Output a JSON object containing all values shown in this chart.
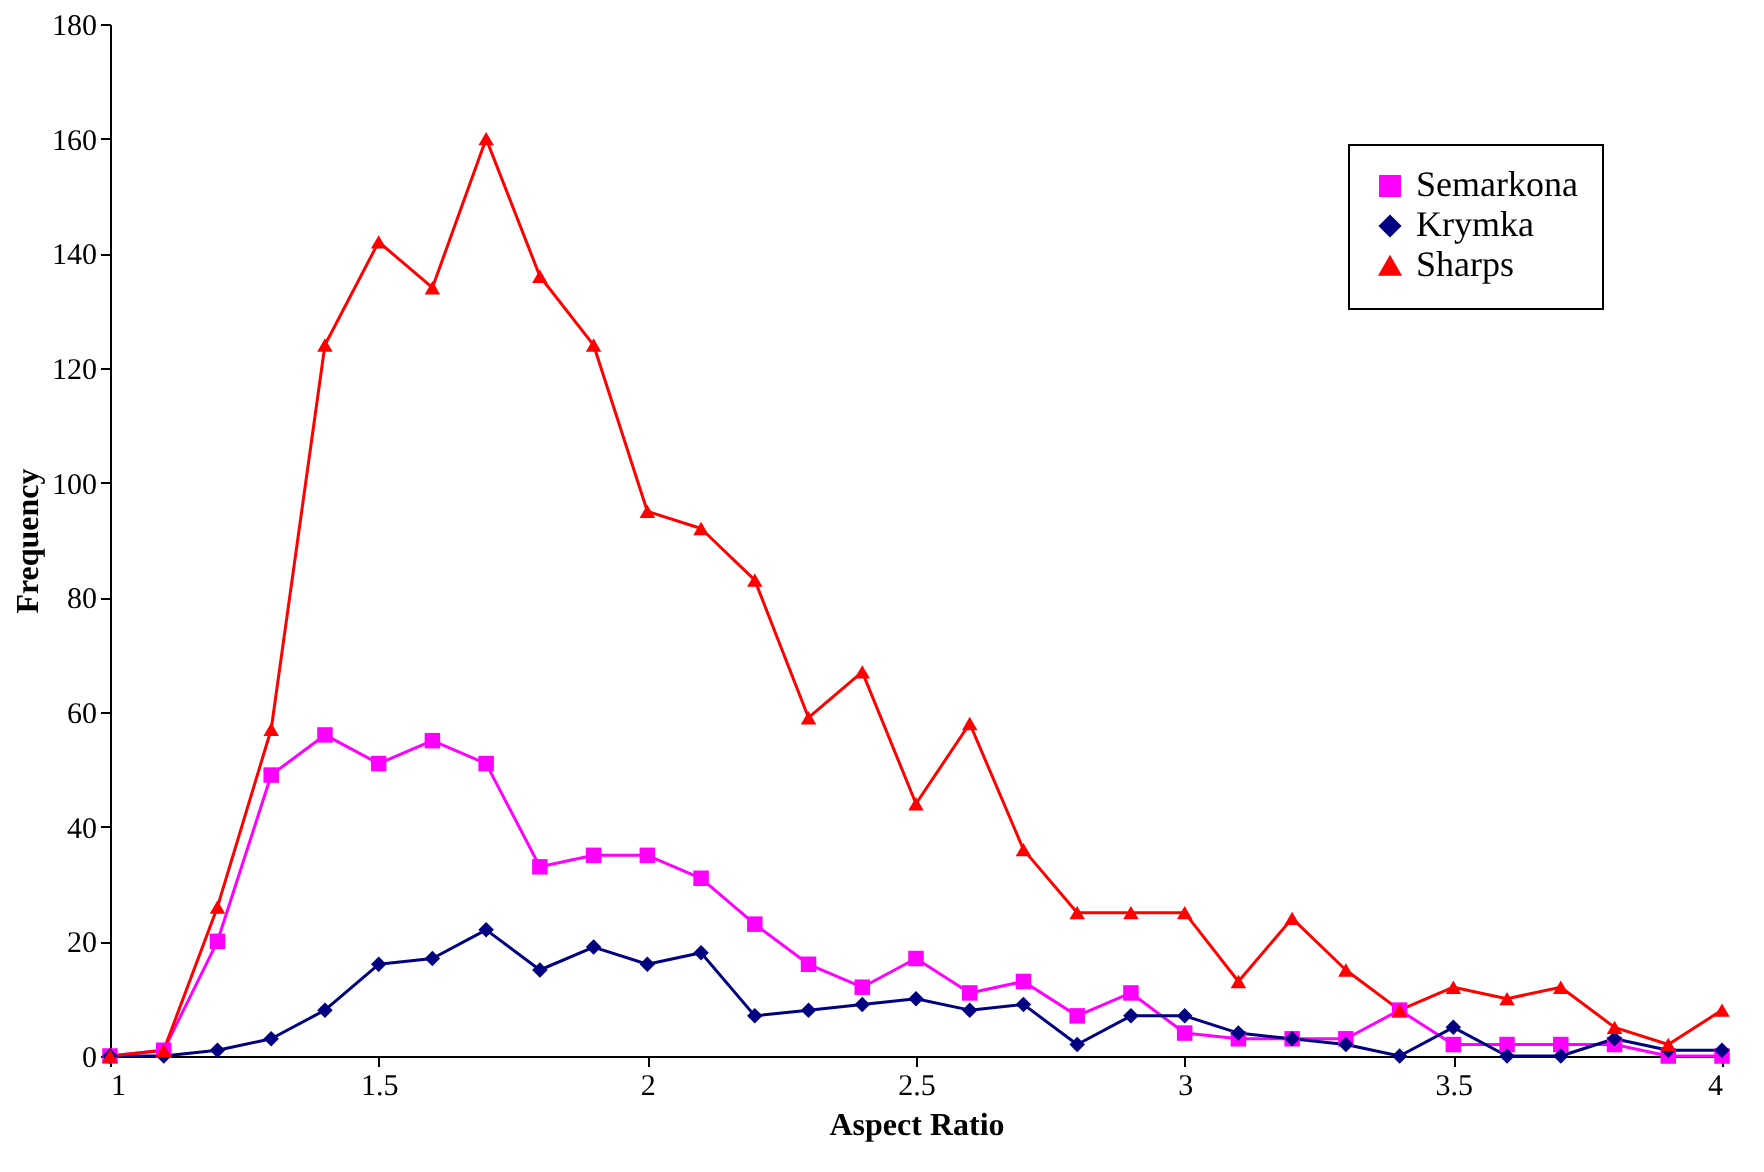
{
  "chart_data": {
    "type": "line",
    "xlabel": "Aspect Ratio",
    "ylabel": "Frequency",
    "x": [
      1,
      1.1,
      1.2,
      1.3,
      1.4,
      1.5,
      1.6,
      1.7,
      1.8,
      1.9,
      2,
      2.1,
      2.2,
      2.3,
      2.4,
      2.5,
      2.6,
      2.7,
      2.8,
      2.9,
      3,
      3.1,
      3.2,
      3.3,
      3.4,
      3.5,
      3.6,
      3.7,
      3.8,
      3.9,
      4
    ],
    "series": [
      {
        "name": "Semarkona",
        "color": "#ff00ff",
        "marker": "square",
        "values": [
          0,
          1,
          20,
          49,
          56,
          51,
          55,
          51,
          33,
          35,
          35,
          31,
          23,
          16,
          12,
          17,
          11,
          13,
          7,
          11,
          4,
          3,
          3,
          3,
          8,
          2,
          2,
          2,
          2,
          0,
          0
        ]
      },
      {
        "name": "Krymka",
        "color": "#000080",
        "marker": "diamond",
        "values": [
          0,
          0,
          1,
          3,
          8,
          16,
          17,
          22,
          15,
          19,
          16,
          18,
          7,
          8,
          9,
          10,
          8,
          9,
          2,
          7,
          7,
          4,
          3,
          2,
          0,
          5,
          0,
          0,
          3,
          1,
          1
        ]
      },
      {
        "name": "Sharps",
        "color": "#ff0000",
        "marker": "triangle",
        "values": [
          0,
          1,
          26,
          57,
          124,
          142,
          134,
          160,
          136,
          124,
          95,
          92,
          83,
          59,
          67,
          44,
          58,
          36,
          25,
          25,
          25,
          13,
          24,
          15,
          8,
          12,
          10,
          12,
          5,
          2,
          8
        ]
      }
    ],
    "xlim": [
      1,
      4
    ],
    "xticks": [
      1,
      1.5,
      2,
      2.5,
      3,
      3.5,
      4
    ],
    "ylim": [
      0,
      180
    ],
    "yticks": [
      0,
      20,
      40,
      60,
      80,
      100,
      120,
      140,
      160,
      180
    ],
    "grid": false,
    "legend": "top right",
    "line_style": "solid"
  }
}
